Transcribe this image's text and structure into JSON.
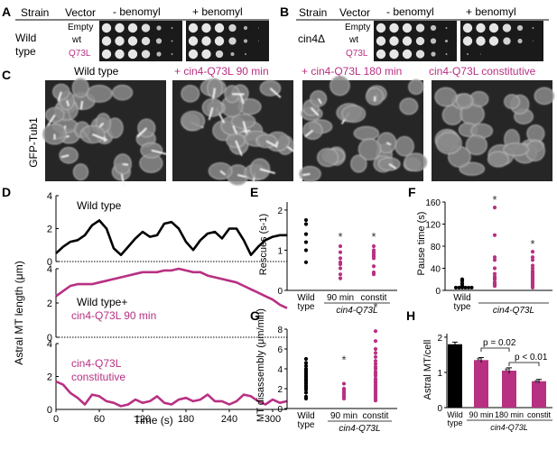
{
  "panelA": {
    "letter": "A",
    "strain_header": "Strain",
    "vector_header": "Vector",
    "minus_label": "- benomyl",
    "plus_label": "+ benomyl",
    "strain": [
      "Wild",
      "type"
    ],
    "vectors": [
      "Empty",
      "wt",
      "Q73L"
    ]
  },
  "panelB": {
    "letter": "B",
    "strain_header": "Strain",
    "vector_header": "Vector",
    "minus_label": "- benomyl",
    "plus_label": "+ benomyl",
    "strain": "cin4Δ",
    "vectors": [
      "Empty",
      "wt",
      "Q73L"
    ]
  },
  "panelC": {
    "letter": "C",
    "ylabel": "GFP-Tub1",
    "titles": [
      "Wild type",
      "+ cin4-Q73L 90 min",
      "+ cin4-Q73L 180 min",
      "cin4-Q73L constitutive"
    ]
  },
  "panelD": {
    "letter": "D",
    "ylabel": "Astral MT length (μm)",
    "xlabel": "Time (s)",
    "xticks": [
      "0",
      "60",
      "120",
      "180",
      "240",
      "300"
    ],
    "yticks": [
      "0",
      "2",
      "4"
    ],
    "traces": [
      {
        "label": "Wild type",
        "color": "#000000"
      },
      {
        "label": "Wild type+",
        "label2": "cin4-Q73L 90 min",
        "color": "#b83082"
      },
      {
        "label": "cin4-Q73L",
        "label2": "constitutive",
        "color": "#b83082"
      }
    ]
  },
  "panelE": {
    "letter": "E",
    "ylabel": "Rescues (s-1)",
    "yticks": [
      "0",
      "1",
      "2"
    ],
    "groups": [
      "Wild type",
      "90 min",
      "constit"
    ],
    "group_label": "cin4-Q73L"
  },
  "panelF": {
    "letter": "F",
    "ylabel": "Pause time (s)",
    "yticks": [
      "0",
      "40",
      "80",
      "120",
      "160"
    ],
    "groups": [
      "Wild type",
      "",
      ""
    ],
    "group_label": "cin4-Q73L"
  },
  "panelG": {
    "letter": "G",
    "ylabel": "MT disassembly (μm/min)",
    "yticks": [
      "0",
      "2",
      "4",
      "6",
      "8"
    ],
    "groups": [
      "Wild type",
      "90 min",
      "constit"
    ],
    "group_label": "cin4-Q73L"
  },
  "panelH": {
    "letter": "H",
    "ylabel": "Astral MT/cell",
    "yticks": [
      "0",
      "1",
      "2"
    ],
    "categories": [
      "Wild type",
      "90 min",
      "180 min",
      "constit"
    ],
    "group_label": "cin4-Q73L",
    "p1": "p = 0.02",
    "p2": "p < 0.01"
  },
  "chart_data": [
    {
      "type": "line",
      "panel": "D",
      "xlabel": "Time (s)",
      "ylabel": "Astral MT length (μm)",
      "xlim": [
        0,
        320
      ],
      "ylim": [
        0,
        4
      ],
      "series": [
        {
          "name": "Wild type",
          "x": [
            0,
            10,
            20,
            30,
            40,
            50,
            60,
            70,
            80,
            90,
            100,
            110,
            120,
            130,
            140,
            150,
            160,
            170,
            180,
            190,
            200,
            210,
            220,
            230,
            240,
            250,
            260,
            270,
            280,
            290,
            300,
            310,
            320
          ],
          "y": [
            0.5,
            0.9,
            1.2,
            1.3,
            1.6,
            2.2,
            2.5,
            2.0,
            0.8,
            0.4,
            0.9,
            1.4,
            1.8,
            1.5,
            1.6,
            2.3,
            2.4,
            2.0,
            1.2,
            0.7,
            1.3,
            1.7,
            1.8,
            1.4,
            2.0,
            2.0,
            1.3,
            0.4,
            0.9,
            1.3,
            1.5,
            1.6,
            1.6
          ]
        },
        {
          "name": "Wild type+ cin4-Q73L 90 min",
          "x": [
            0,
            10,
            20,
            30,
            40,
            50,
            60,
            70,
            80,
            90,
            100,
            110,
            120,
            130,
            140,
            150,
            160,
            170,
            180,
            190,
            200,
            210,
            220,
            230,
            240,
            250,
            260,
            270,
            280,
            290,
            300,
            310,
            320
          ],
          "y": [
            2.4,
            2.7,
            3.0,
            3.1,
            3.1,
            3.1,
            3.2,
            3.3,
            3.4,
            3.5,
            3.6,
            3.7,
            3.8,
            3.8,
            3.8,
            3.9,
            3.9,
            4.0,
            3.9,
            3.8,
            3.8,
            3.6,
            3.5,
            3.4,
            3.3,
            3.2,
            3.0,
            2.8,
            2.6,
            2.4,
            2.2,
            1.9,
            1.7
          ]
        },
        {
          "name": "cin4-Q73L constitutive",
          "x": [
            0,
            10,
            20,
            30,
            40,
            50,
            60,
            70,
            80,
            90,
            100,
            110,
            120,
            130,
            140,
            150,
            160,
            170,
            180,
            190,
            200,
            210,
            220,
            230,
            240,
            250,
            260,
            270,
            280,
            290,
            300,
            310,
            320
          ],
          "y": [
            1.7,
            1.5,
            1.0,
            0.7,
            0.3,
            0.9,
            0.8,
            0.5,
            0.4,
            0.2,
            0.3,
            0.6,
            0.4,
            0.5,
            0.8,
            0.4,
            0.3,
            0.6,
            0.7,
            0.5,
            0.6,
            0.9,
            0.5,
            0.5,
            0.3,
            0.5,
            0.9,
            0.8,
            0.5,
            0.3,
            0.6,
            0.4,
            0.5
          ]
        }
      ]
    },
    {
      "type": "scatter",
      "panel": "E",
      "ylabel": "Rescues (s-1)",
      "ylim": [
        0,
        2
      ],
      "categories": [
        "Wild type",
        "90 min",
        "constit"
      ],
      "series": [
        {
          "name": "Wild type",
          "values": [
            1.75,
            1.65,
            1.4,
            1.2,
            1.0,
            0.7
          ]
        },
        {
          "name": "90 min",
          "values": [
            1.1,
            0.95,
            0.8,
            0.7,
            0.65,
            0.55,
            0.4,
            0.3
          ]
        },
        {
          "name": "constit",
          "values": [
            1.1,
            1.0,
            0.95,
            0.9,
            0.85,
            0.8,
            0.6,
            0.45,
            0.4
          ]
        }
      ]
    },
    {
      "type": "scatter",
      "panel": "F",
      "ylabel": "Pause time (s)",
      "ylim": [
        0,
        160
      ],
      "series": [
        {
          "name": "Wild type",
          "values": [
            20,
            17,
            12,
            8,
            5,
            5,
            5,
            5,
            5,
            5
          ]
        },
        {
          "name": "90 min",
          "values": [
            150,
            100,
            60,
            55,
            40,
            30,
            25,
            22,
            20,
            15,
            12,
            10,
            8
          ]
        },
        {
          "name": "constit",
          "values": [
            70,
            60,
            55,
            45,
            40,
            35,
            33,
            30,
            28,
            25,
            22,
            20,
            18,
            15,
            12,
            10,
            8,
            5
          ]
        }
      ]
    },
    {
      "type": "scatter",
      "panel": "G",
      "ylabel": "MT disassembly (μm/min)",
      "ylim": [
        0,
        8
      ],
      "categories": [
        "Wild type",
        "90 min",
        "constit"
      ],
      "series": [
        {
          "name": "Wild type",
          "values": [
            5.0,
            4.6,
            4.3,
            4.0,
            3.8,
            3.6,
            3.5,
            3.3,
            3.2,
            3.0,
            2.9,
            2.8,
            2.6,
            2.5,
            2.3,
            2.1,
            1.9,
            1.6,
            1.2,
            1.0
          ]
        },
        {
          "name": "90 min",
          "values": [
            2.5,
            2.0,
            1.8,
            1.6,
            1.5,
            1.3,
            1.2,
            1.0
          ]
        },
        {
          "name": "constit",
          "values": [
            7.8,
            6.8,
            6.0,
            5.6,
            5.2,
            4.8,
            4.5,
            4.2,
            4.0,
            3.7,
            3.5,
            3.3,
            3.0,
            2.8,
            2.6,
            2.4,
            2.2,
            2.0,
            1.8,
            1.6,
            1.4,
            1.2,
            1.0,
            0.8
          ]
        }
      ]
    },
    {
      "type": "bar",
      "panel": "H",
      "ylabel": "Astral MT/cell",
      "ylim": [
        0,
        2
      ],
      "categories": [
        "Wild type",
        "90 min",
        "180 min",
        "constit"
      ],
      "values": [
        1.8,
        1.35,
        1.05,
        0.75
      ],
      "errors": [
        0.06,
        0.07,
        0.08,
        0.05
      ],
      "colors": [
        "#000000",
        "#b83082",
        "#b83082",
        "#b83082"
      ]
    }
  ]
}
